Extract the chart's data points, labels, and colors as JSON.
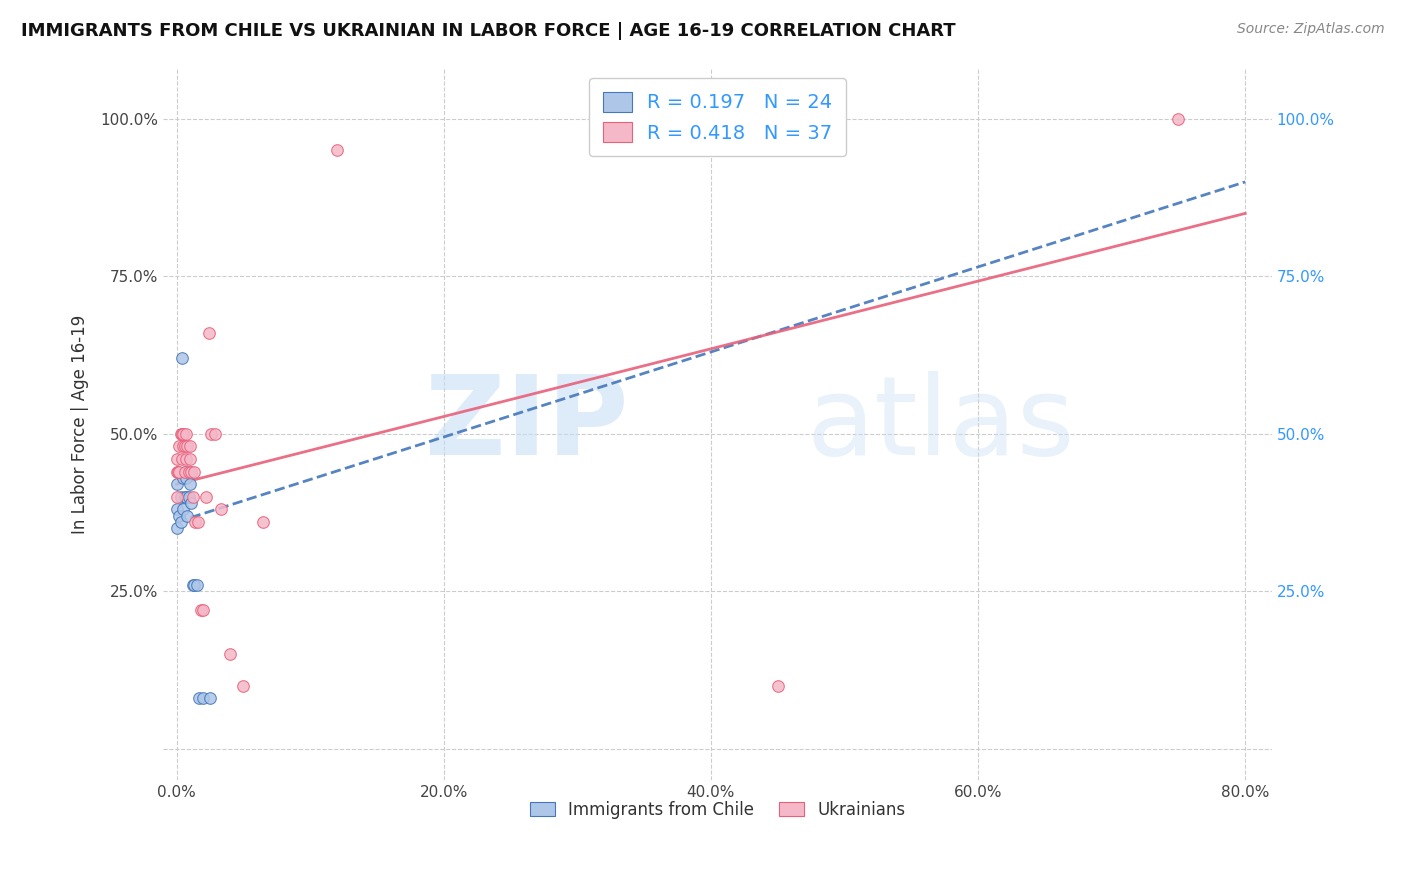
{
  "title": "IMMIGRANTS FROM CHILE VS UKRAINIAN IN LABOR FORCE | AGE 16-19 CORRELATION CHART",
  "source": "Source: ZipAtlas.com",
  "ylabel": "In Labor Force | Age 16-19",
  "x_ticks": [
    "0.0%",
    "20.0%",
    "40.0%",
    "60.0%",
    "80.0%"
  ],
  "x_tick_vals": [
    0.0,
    0.2,
    0.4,
    0.6,
    0.8
  ],
  "y_tick_vals": [
    0.0,
    0.25,
    0.5,
    0.75,
    1.0
  ],
  "y_tick_labels_left": [
    "",
    "25.0%",
    "50.0%",
    "75.0%",
    "100.0%"
  ],
  "y_tick_labels_right": [
    "",
    "25.0%",
    "50.0%",
    "75.0%",
    "100.0%"
  ],
  "xlim": [
    -0.01,
    0.82
  ],
  "ylim": [
    -0.05,
    1.08
  ],
  "chile_R": 0.197,
  "chile_N": 24,
  "ukraine_R": 0.418,
  "ukraine_N": 37,
  "chile_color": "#aec6e8",
  "ukraine_color": "#f4b8c8",
  "chile_line_color": "#4477bb",
  "ukraine_line_color": "#e8607a",
  "right_axis_color": "#3399ff",
  "legend_text_color": "#3399ff",
  "chile_x": [
    0.0,
    0.0,
    0.0,
    0.002,
    0.003,
    0.003,
    0.004,
    0.005,
    0.005,
    0.006,
    0.006,
    0.007,
    0.007,
    0.008,
    0.009,
    0.01,
    0.01,
    0.011,
    0.012,
    0.013,
    0.015,
    0.017,
    0.02,
    0.025
  ],
  "chile_y": [
    0.35,
    0.38,
    0.42,
    0.37,
    0.36,
    0.4,
    0.62,
    0.38,
    0.43,
    0.4,
    0.44,
    0.4,
    0.43,
    0.37,
    0.4,
    0.42,
    0.44,
    0.39,
    0.26,
    0.26,
    0.26,
    0.08,
    0.08,
    0.08
  ],
  "ukraine_x": [
    0.0,
    0.0,
    0.0,
    0.001,
    0.002,
    0.002,
    0.003,
    0.004,
    0.004,
    0.005,
    0.005,
    0.006,
    0.006,
    0.007,
    0.007,
    0.008,
    0.009,
    0.01,
    0.01,
    0.011,
    0.012,
    0.013,
    0.014,
    0.016,
    0.018,
    0.02,
    0.022,
    0.024,
    0.026,
    0.029,
    0.033,
    0.04,
    0.05,
    0.065,
    0.12,
    0.45,
    0.75
  ],
  "ukraine_y": [
    0.4,
    0.44,
    0.46,
    0.44,
    0.44,
    0.48,
    0.5,
    0.46,
    0.5,
    0.48,
    0.5,
    0.44,
    0.48,
    0.46,
    0.5,
    0.48,
    0.44,
    0.46,
    0.48,
    0.44,
    0.4,
    0.44,
    0.36,
    0.36,
    0.22,
    0.22,
    0.4,
    0.66,
    0.5,
    0.5,
    0.38,
    0.15,
    0.1,
    0.36,
    0.95,
    0.1,
    1.0
  ],
  "chile_line_x0": 0.0,
  "chile_line_y0": 0.36,
  "chile_line_x1": 0.8,
  "chile_line_y1": 0.9,
  "ukraine_line_x0": 0.0,
  "ukraine_line_y0": 0.42,
  "ukraine_line_x1": 0.8,
  "ukraine_line_y1": 0.85
}
